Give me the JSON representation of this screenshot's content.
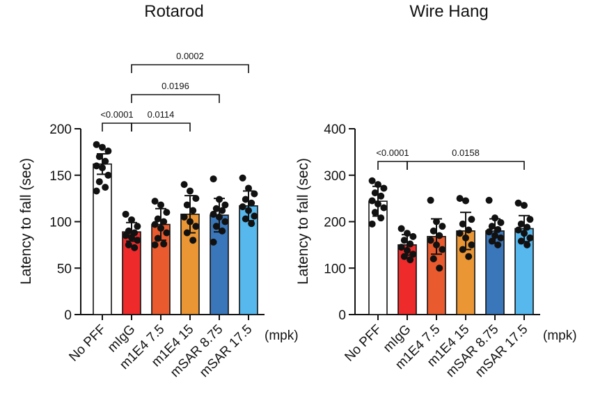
{
  "chart_data": [
    {
      "type": "bar",
      "title": "Rotarod",
      "ylabel": "Latency to fall (sec)",
      "unit_label": "(mpk)",
      "ylim": [
        0,
        200
      ],
      "yticks": [
        0,
        50,
        100,
        150,
        200
      ],
      "categories": [
        "No PFF",
        "mIgG",
        "m1E4 7.5",
        "m1E4 15",
        "mSAR 8.75",
        "mSAR 17.5"
      ],
      "colors": [
        "#ffffff",
        "#ee2a2a",
        "#e95a2e",
        "#eb9634",
        "#3a77ba",
        "#56b8ec"
      ],
      "means": [
        162,
        89,
        97,
        108,
        107,
        117
      ],
      "sd": [
        11,
        10,
        17,
        20,
        18,
        16
      ],
      "points": [
        [
          183,
          180,
          176,
          170,
          165,
          160,
          158,
          150,
          143,
          137,
          133
        ],
        [
          108,
          102,
          95,
          90,
          88,
          85,
          83,
          80,
          75,
          72
        ],
        [
          122,
          118,
          110,
          103,
          100,
          97,
          93,
          88,
          82,
          76,
          75
        ],
        [
          140,
          133,
          125,
          118,
          112,
          105,
          100,
          95,
          88,
          80
        ],
        [
          146,
          124,
          118,
          114,
          112,
          108,
          105,
          100,
          95,
          90,
          78
        ],
        [
          147,
          136,
          130,
          124,
          120,
          116,
          112,
          106,
          103,
          98
        ]
      ],
      "comparisons": [
        {
          "from": 0,
          "to": 1,
          "label": "<0.0001"
        },
        {
          "from": 1,
          "to": 3,
          "label": "0.0114"
        },
        {
          "from": 1,
          "to": 4,
          "label": "0.0196"
        },
        {
          "from": 1,
          "to": 5,
          "label": "0.0002"
        }
      ]
    },
    {
      "type": "bar",
      "title": "Wire Hang",
      "ylabel": "Latency to fall (sec)",
      "unit_label": "(mpk)",
      "ylim": [
        0,
        400
      ],
      "yticks": [
        0,
        100,
        200,
        300,
        400
      ],
      "categories": [
        "No PFF",
        "mIgG",
        "m1E4 7.5",
        "m1E4 15",
        "mSAR 8.75",
        "mSAR 17.5"
      ],
      "colors": [
        "#ffffff",
        "#ee2a2a",
        "#e95a2e",
        "#eb9634",
        "#3a77ba",
        "#56b8ec"
      ],
      "means": [
        244,
        150,
        168,
        180,
        180,
        185
      ],
      "sd": [
        32,
        22,
        38,
        40,
        26,
        28
      ],
      "points": [
        [
          288,
          280,
          272,
          262,
          255,
          245,
          238,
          230,
          220,
          208,
          195
        ],
        [
          185,
          175,
          168,
          160,
          152,
          145,
          138,
          130,
          125,
          118
        ],
        [
          246,
          200,
          190,
          180,
          170,
          160,
          150,
          140,
          120,
          100
        ],
        [
          250,
          245,
          205,
          195,
          182,
          175,
          165,
          150,
          140,
          125
        ],
        [
          246,
          208,
          198,
          190,
          183,
          178,
          170,
          165,
          158,
          150
        ],
        [
          240,
          235,
          205,
          195,
          188,
          182,
          175,
          165,
          158,
          150
        ]
      ],
      "comparisons": [
        {
          "from": 0,
          "to": 1,
          "label": "<0.0001"
        },
        {
          "from": 1,
          "to": 5,
          "label": "0.0158"
        }
      ]
    }
  ]
}
